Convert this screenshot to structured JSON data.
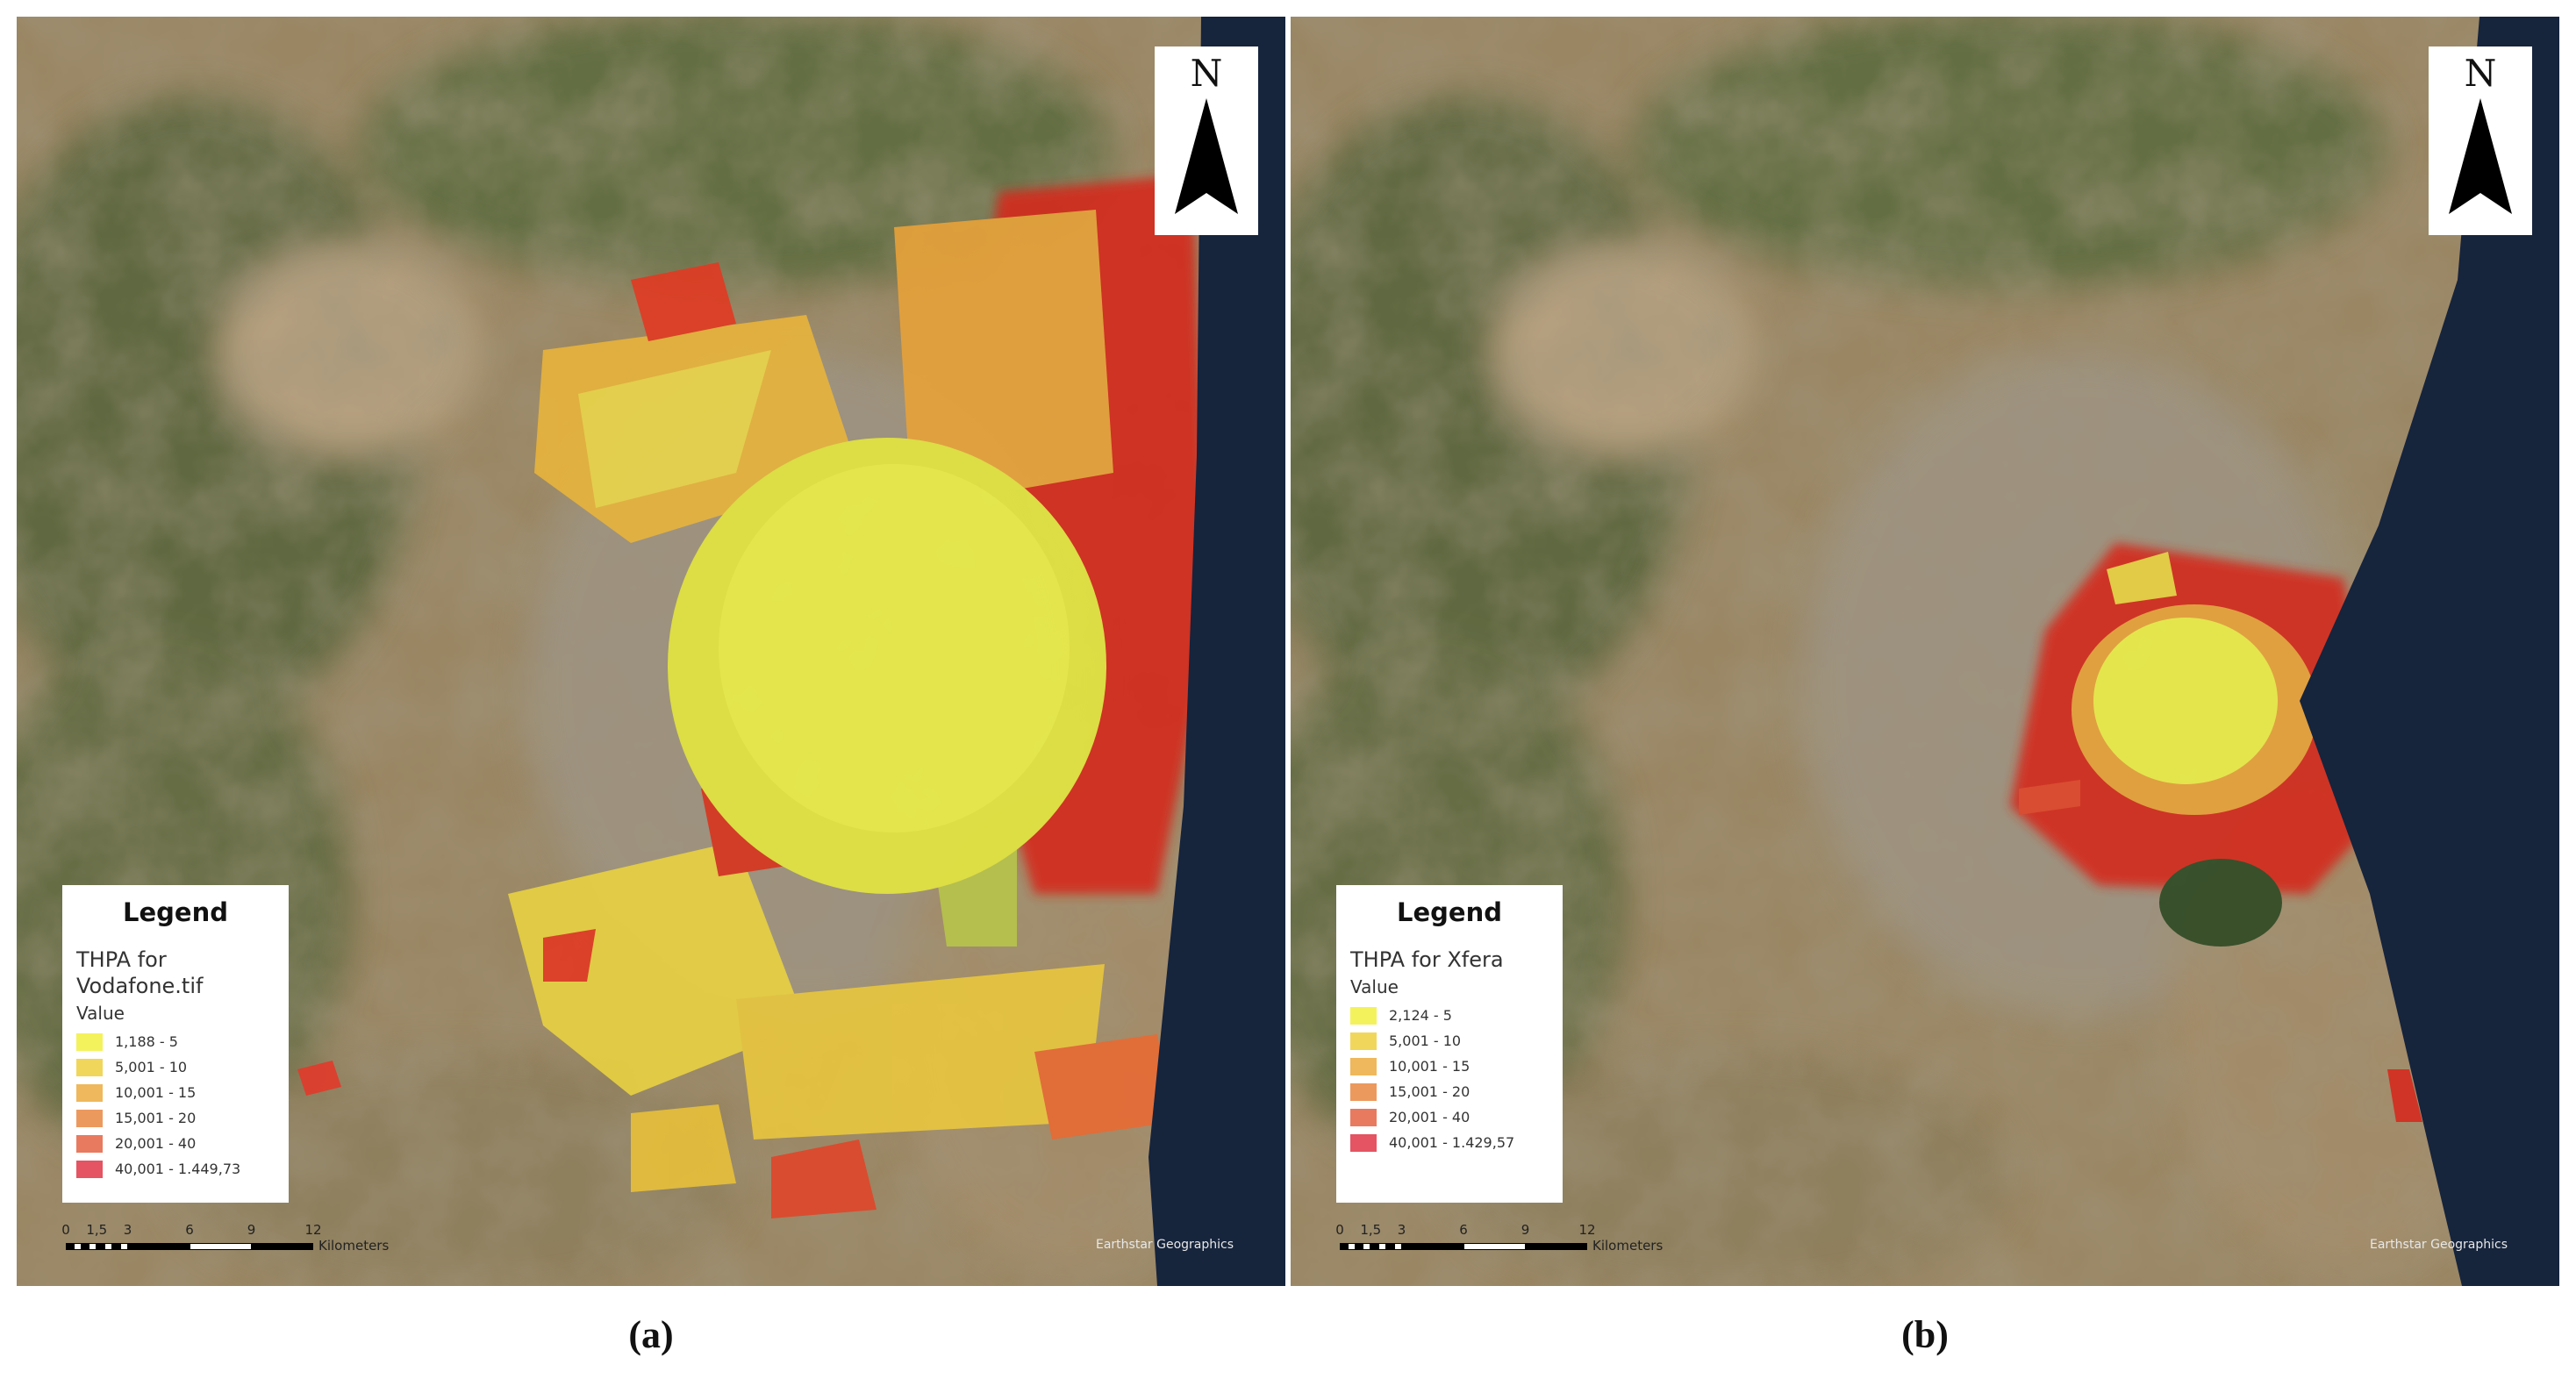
{
  "panels": [
    {
      "caption": "(a)",
      "north": "N",
      "legend": {
        "heading": "Legend",
        "layer": "THPA for Vodafone.tif",
        "field": "Value",
        "classes": [
          {
            "label": "1,188 - 5",
            "color": "#f4f25c"
          },
          {
            "label": "5,001 - 10",
            "color": "#f1d65c"
          },
          {
            "label": "10,001 - 15",
            "color": "#efb85c"
          },
          {
            "label": "15,001 - 20",
            "color": "#ec995e"
          },
          {
            "label": "20,001 - 40",
            "color": "#e87a60"
          },
          {
            "label": "40,001 - 1.449,73",
            "color": "#e45462"
          }
        ]
      },
      "scale": {
        "ticks": [
          "0",
          "1,5",
          "3",
          "6",
          "9",
          "12"
        ],
        "unit": "Kilometers"
      },
      "attribution": "Earthstar Geographics"
    },
    {
      "caption": "(b)",
      "north": "N",
      "legend": {
        "heading": "Legend",
        "layer": "THPA for Xfera",
        "field": "Value",
        "classes": [
          {
            "label": "2,124 - 5",
            "color": "#f4f25c"
          },
          {
            "label": "5,001 - 10",
            "color": "#f1d65c"
          },
          {
            "label": "10,001 - 15",
            "color": "#efb85c"
          },
          {
            "label": "15,001 - 20",
            "color": "#ec995e"
          },
          {
            "label": "20,001 - 40",
            "color": "#e87a60"
          },
          {
            "label": "40,001 - 1.429,57",
            "color": "#e45462"
          }
        ]
      },
      "scale": {
        "ticks": [
          "0",
          "1,5",
          "3",
          "6",
          "9",
          "12"
        ],
        "unit": "Kilometers"
      },
      "attribution": "Earthstar Geographics"
    }
  ]
}
